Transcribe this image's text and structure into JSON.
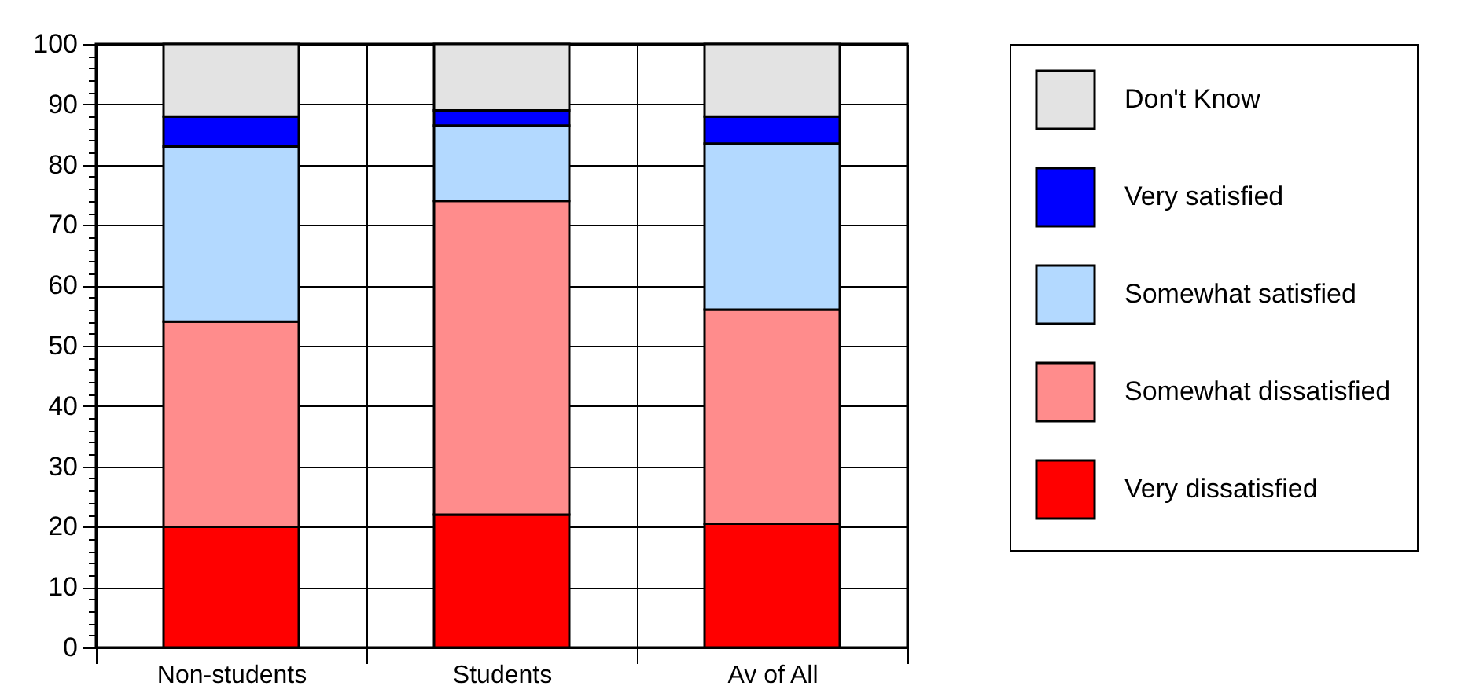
{
  "chart_data": {
    "type": "bar",
    "stacked": true,
    "categories": [
      "Non-students",
      "Students",
      "Av of All"
    ],
    "series": [
      {
        "name": "Very dissatisfied",
        "color": "#ff0000",
        "values": [
          20,
          22,
          20.5
        ]
      },
      {
        "name": "Somewhat dissatisfied",
        "color": "#ff8c8c",
        "values": [
          34,
          52,
          35.5
        ]
      },
      {
        "name": "Somewhat satisfied",
        "color": "#b3d9ff",
        "values": [
          29,
          12.5,
          27.5
        ]
      },
      {
        "name": "Very satisfied",
        "color": "#0000ff",
        "values": [
          5,
          2.5,
          4.5
        ]
      },
      {
        "name": "Don't Know",
        "color": "#e3e3e3",
        "values": [
          12,
          11,
          12
        ]
      }
    ],
    "ylim": [
      0,
      100
    ],
    "yticks": [
      0,
      {
        "value": 2,
        "label": null
      },
      {
        "value": 4,
        "label": null
      },
      {
        "value": 6,
        "label": null
      },
      {
        "value": 8,
        "label": null
      },
      10,
      {
        "value": 12,
        "label": null
      },
      {
        "value": 14,
        "label": null
      },
      {
        "value": 16,
        "label": null
      },
      {
        "value": 18,
        "label": null
      },
      20,
      {
        "value": 22,
        "label": null
      },
      {
        "value": 24,
        "label": null
      },
      {
        "value": 26,
        "label": null
      },
      {
        "value": 28,
        "label": null
      },
      30,
      {
        "value": 32,
        "label": null
      },
      {
        "value": 34,
        "label": null
      },
      {
        "value": 36,
        "label": null
      },
      {
        "value": 38,
        "label": null
      },
      40,
      {
        "value": 42,
        "label": null
      },
      {
        "value": 44,
        "label": null
      },
      {
        "value": 46,
        "label": null
      },
      {
        "value": 48,
        "label": null
      },
      50,
      {
        "value": 52,
        "label": null
      },
      {
        "value": 54,
        "label": null
      },
      {
        "value": 56,
        "label": null
      },
      {
        "value": 58,
        "label": null
      },
      60,
      {
        "value": 62,
        "label": null
      },
      {
        "value": 64,
        "label": null
      },
      {
        "value": 66,
        "label": null
      },
      {
        "value": 68,
        "label": null
      },
      70,
      {
        "value": 72,
        "label": null
      },
      {
        "value": 74,
        "label": null
      },
      {
        "value": 76,
        "label": null
      },
      {
        "value": 78,
        "label": null
      },
      80,
      {
        "value": 82,
        "label": null
      },
      {
        "value": 84,
        "label": null
      },
      {
        "value": 86,
        "label": null
      },
      {
        "value": 88,
        "label": null
      },
      90,
      {
        "value": 92,
        "label": null
      },
      {
        "value": 94,
        "label": null
      },
      {
        "value": 96,
        "label": null
      },
      {
        "value": 98,
        "label": null
      },
      100
    ],
    "grid": true,
    "legend": "right"
  }
}
